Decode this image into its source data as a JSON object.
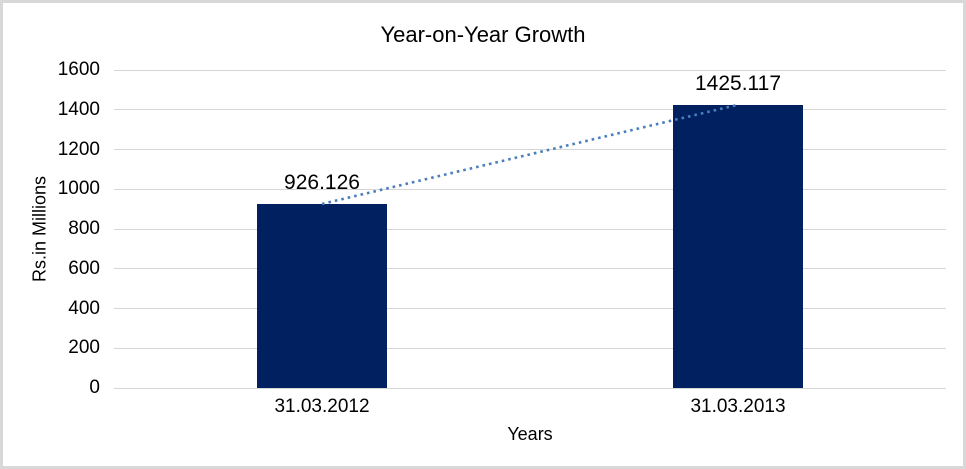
{
  "window": {
    "background": "#ffffff",
    "border_color": "#d8d8d8"
  },
  "chart_data": {
    "type": "bar",
    "title": "Year-on-Year Growth",
    "xlabel": "Years",
    "ylabel": "Rs.in Millions",
    "categories": [
      "31.03.2012",
      "31.03.2013"
    ],
    "values": [
      926.126,
      1425.117
    ],
    "data_labels": [
      "926.126",
      "1425.117"
    ],
    "ylim": [
      0,
      1600
    ],
    "yticks": [
      0,
      200,
      400,
      600,
      800,
      1000,
      1200,
      1400,
      1600
    ],
    "grid": true,
    "legend_position": "none",
    "bar_color": "#002060",
    "gridline_color": "#d6d6d6",
    "trendline": {
      "style": "dotted",
      "color": "#4a7ebc",
      "from": "bar-1-top",
      "to": "bar-2-top"
    }
  }
}
